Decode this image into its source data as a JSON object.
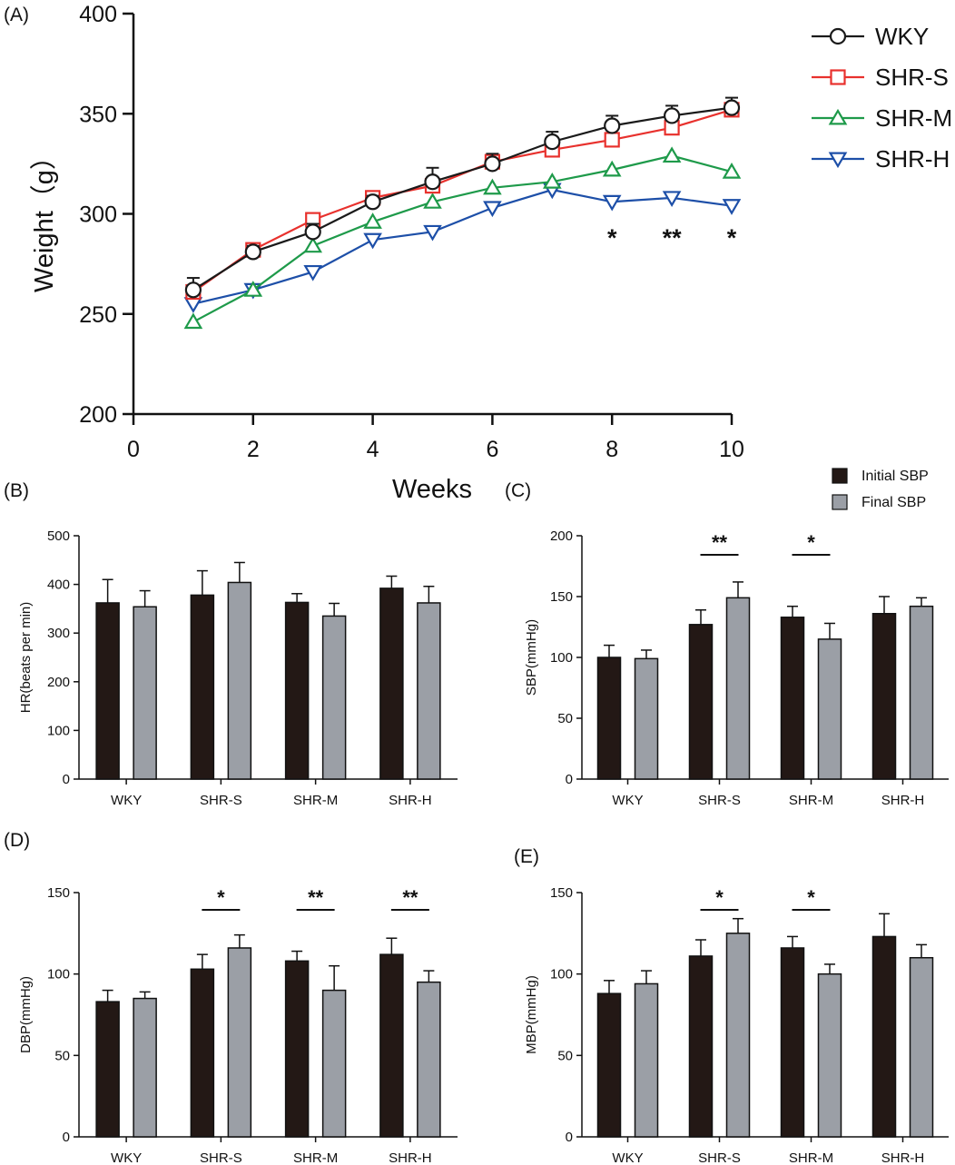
{
  "colors": {
    "WKY": "#1a1a1a",
    "SHR-S": "#e8312d",
    "SHR-M": "#1e9a4a",
    "SHR-H": "#1d4fa8",
    "initial_bar": "#231815",
    "final_bar": "#9b9fa6"
  },
  "chart_data": [
    {
      "panel": "(A)",
      "type": "line",
      "xlabel": "Weeks",
      "ylabel": "Weight（g）",
      "xlim": [
        0,
        10
      ],
      "ylim": [
        200,
        400
      ],
      "xticks": [
        0,
        2,
        4,
        6,
        8,
        10
      ],
      "yticks": [
        200,
        250,
        300,
        350,
        400
      ],
      "x": [
        1,
        2,
        3,
        4,
        5,
        6,
        7,
        8,
        9,
        10
      ],
      "legend_position": "top-right",
      "series": [
        {
          "name": "WKY",
          "marker": "circle",
          "values": [
            262,
            281,
            291,
            306,
            316,
            325,
            336,
            344,
            349,
            353
          ],
          "errors": [
            6,
            3,
            4,
            3,
            7,
            5,
            5,
            5,
            5,
            5
          ]
        },
        {
          "name": "SHR-S",
          "marker": "square",
          "values": [
            261,
            282,
            297,
            308,
            314,
            326,
            332,
            337,
            343,
            352
          ],
          "errors": [
            0,
            0,
            0,
            0,
            0,
            0,
            0,
            0,
            0,
            0
          ]
        },
        {
          "name": "SHR-M",
          "marker": "triangle-up",
          "values": [
            246,
            262,
            284,
            296,
            306,
            313,
            316,
            322,
            329,
            321
          ],
          "errors": [
            0,
            0,
            0,
            0,
            0,
            0,
            0,
            0,
            0,
            0
          ]
        },
        {
          "name": "SHR-H",
          "marker": "triangle-down",
          "values": [
            255,
            262,
            271,
            287,
            291,
            303,
            312,
            306,
            308,
            304
          ],
          "errors": [
            0,
            0,
            0,
            0,
            0,
            0,
            0,
            0,
            0,
            0
          ]
        }
      ],
      "annotations": [
        {
          "x": 8,
          "text": "*"
        },
        {
          "x": 9,
          "text": "**"
        },
        {
          "x": 10,
          "text": "*"
        }
      ]
    },
    {
      "panel": "(B)",
      "type": "bar",
      "ylabel": "HR(beats per min)",
      "ylim": [
        0,
        500
      ],
      "yticks": [
        0,
        100,
        200,
        300,
        400,
        500
      ],
      "categories": [
        "WKY",
        "SHR-S",
        "SHR-M",
        "SHR-H"
      ],
      "series": [
        {
          "name": "Initial",
          "values": [
            362,
            378,
            363,
            392
          ],
          "errors": [
            48,
            50,
            18,
            25
          ]
        },
        {
          "name": "Final",
          "values": [
            354,
            404,
            335,
            362
          ],
          "errors": [
            33,
            41,
            26,
            34
          ]
        }
      ],
      "significance": []
    },
    {
      "panel": "(C)",
      "type": "bar",
      "ylabel": "SBP(mmHg)",
      "ylim": [
        0,
        200
      ],
      "yticks": [
        0,
        50,
        100,
        150,
        200
      ],
      "categories": [
        "WKY",
        "SHR-S",
        "SHR-M",
        "SHR-H"
      ],
      "legend": [
        "Initial SBP",
        "Final SBP"
      ],
      "legend_position": "top-right",
      "series": [
        {
          "name": "Initial SBP",
          "values": [
            100,
            127,
            133,
            136
          ],
          "errors": [
            10,
            12,
            9,
            14
          ]
        },
        {
          "name": "Final SBP",
          "values": [
            99,
            149,
            115,
            142
          ],
          "errors": [
            7,
            13,
            13,
            7
          ]
        }
      ],
      "significance": [
        {
          "category": 1,
          "text": "**"
        },
        {
          "category": 2,
          "text": "*"
        }
      ]
    },
    {
      "panel": "(D)",
      "type": "bar",
      "ylabel": "DBP(mmHg)",
      "ylim": [
        0,
        150
      ],
      "yticks": [
        0,
        50,
        100,
        150
      ],
      "categories": [
        "WKY",
        "SHR-S",
        "SHR-M",
        "SHR-H"
      ],
      "series": [
        {
          "name": "Initial",
          "values": [
            83,
            103,
            108,
            112
          ],
          "errors": [
            7,
            9,
            6,
            10
          ]
        },
        {
          "name": "Final",
          "values": [
            85,
            116,
            90,
            95
          ],
          "errors": [
            4,
            8,
            15,
            7
          ]
        }
      ],
      "significance": [
        {
          "category": 1,
          "text": "*"
        },
        {
          "category": 2,
          "text": "**"
        },
        {
          "category": 3,
          "text": "**"
        }
      ]
    },
    {
      "panel": "(E)",
      "type": "bar",
      "ylabel": "MBP(mmHg)",
      "ylim": [
        0,
        150
      ],
      "yticks": [
        0,
        50,
        100,
        150
      ],
      "categories": [
        "WKY",
        "SHR-S",
        "SHR-M",
        "SHR-H"
      ],
      "series": [
        {
          "name": "Initial",
          "values": [
            88,
            111,
            116,
            123
          ],
          "errors": [
            8,
            10,
            7,
            14
          ]
        },
        {
          "name": "Final",
          "values": [
            94,
            125,
            100,
            110
          ],
          "errors": [
            8,
            9,
            6,
            8
          ]
        }
      ],
      "significance": [
        {
          "category": 1,
          "text": "*"
        },
        {
          "category": 2,
          "text": "*"
        }
      ]
    }
  ]
}
